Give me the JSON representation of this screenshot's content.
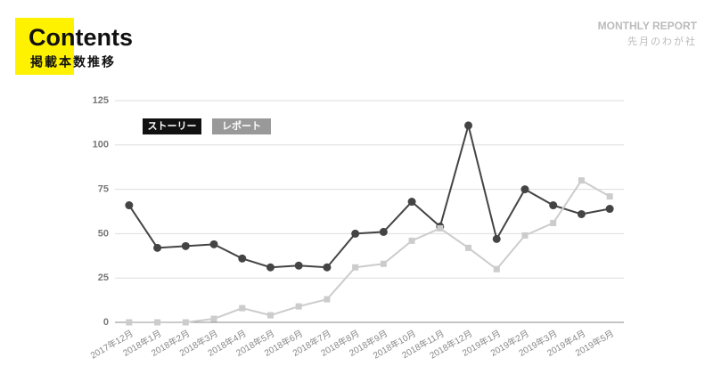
{
  "header": {
    "title": "Contents",
    "subtitle": "掲載本数推移",
    "brand": "MONTHLY REPORT",
    "brand_sub": "先月のわが社"
  },
  "chart_data": {
    "type": "line",
    "categories": [
      "2017年12月",
      "2018年1月",
      "2018年2月",
      "2018年3月",
      "2018年4月",
      "2018年5月",
      "2018年6月",
      "2018年7月",
      "2018年8月",
      "2018年9月",
      "2018年10月",
      "2018年11月",
      "2018年12月",
      "2019年1月",
      "2019年2月",
      "2019年3月",
      "2019年4月",
      "2019年5月"
    ],
    "series": [
      {
        "name": "ストーリー",
        "color": "#444444",
        "marker": "circle",
        "values": [
          66,
          42,
          43,
          44,
          36,
          31,
          32,
          31,
          50,
          51,
          68,
          54,
          111,
          47,
          75,
          66,
          61,
          64
        ]
      },
      {
        "name": "レポート",
        "color": "#cccccc",
        "marker": "square",
        "values": [
          0,
          0,
          0,
          2,
          8,
          4,
          9,
          13,
          31,
          33,
          46,
          53,
          42,
          30,
          49,
          56,
          80,
          71
        ]
      }
    ],
    "ylim": [
      0,
      125
    ],
    "yticks": [
      0,
      25,
      50,
      75,
      100,
      125
    ],
    "grid": true
  }
}
